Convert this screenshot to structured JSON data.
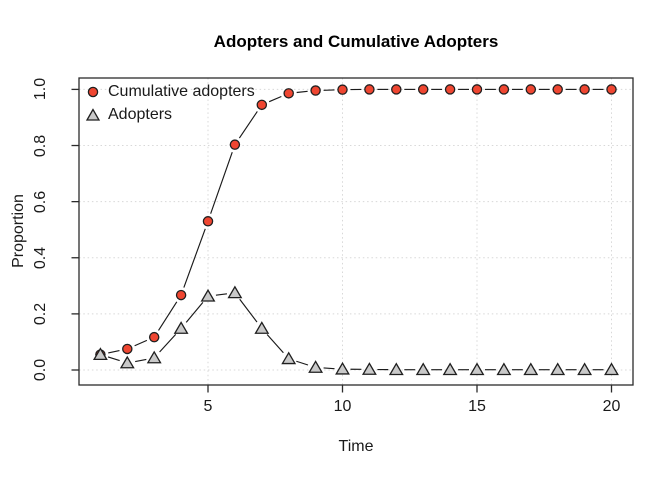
{
  "chart_data": {
    "type": "line",
    "title": "Adopters and Cumulative Adopters",
    "xlabel": "Time",
    "ylabel": "Proportion",
    "x": [
      1,
      2,
      3,
      4,
      5,
      6,
      7,
      8,
      9,
      10,
      11,
      12,
      13,
      14,
      15,
      16,
      17,
      18,
      19,
      20
    ],
    "series": [
      {
        "name": "Cumulative adopters",
        "marker": "circle",
        "marker_fill": "#ef4631",
        "values": [
          0.055,
          0.075,
          0.117,
          0.267,
          0.53,
          0.803,
          0.945,
          0.986,
          0.996,
          0.999,
          1.0,
          1.0,
          1.0,
          1.0,
          1.0,
          1.0,
          1.0,
          1.0,
          1.0,
          1.0
        ]
      },
      {
        "name": "Adopters",
        "marker": "triangle",
        "marker_fill": "#c9c9c9",
        "values": [
          0.055,
          0.025,
          0.043,
          0.148,
          0.263,
          0.275,
          0.148,
          0.04,
          0.009,
          0.003,
          0.002,
          0.001,
          0.001,
          0.001,
          0.001,
          0.001,
          0.001,
          0.001,
          0.001,
          0.001
        ]
      }
    ],
    "x_ticks": [
      "5",
      "10",
      "15",
      "20"
    ],
    "y_ticks": [
      "0.0",
      "0.2",
      "0.4",
      "0.6",
      "0.8",
      "1.0"
    ],
    "xlim": [
      1,
      20
    ],
    "ylim": [
      0,
      1
    ],
    "grid": "dotted",
    "legend_position": "top-left"
  },
  "colors": {
    "point_outline": "#1f1f1f",
    "line": "#1a1a1a",
    "grid": "#d8d8d8",
    "box": "#2b2b2b",
    "background": "#ffffff"
  }
}
